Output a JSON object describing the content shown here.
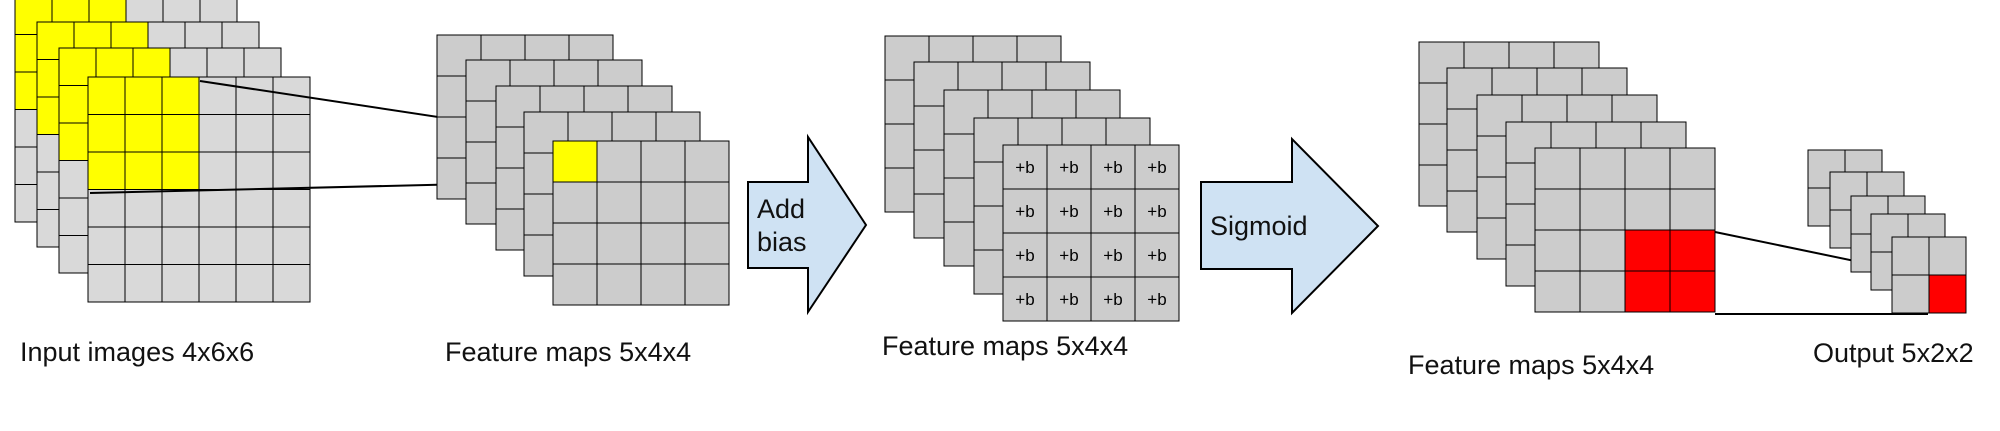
{
  "labels": {
    "input": "Input images 4x6x6",
    "conv_maps": "Feature maps 5x4x4",
    "bias_maps": "Feature maps 5x4x4",
    "sigmoid_maps": "Feature maps 5x4x4",
    "output": "Output 5x2x2"
  },
  "arrows": {
    "add_bias": [
      "Add",
      "bias"
    ],
    "sigmoid": "Sigmoid"
  },
  "bias_cell_text": "+b",
  "colors": {
    "grid_fill": "#d9d9d9",
    "map_fill": "#cccccc",
    "highlight_input": "#ffff00",
    "highlight_pool": "#ff0000",
    "arrow_fill": "#cfe2f3",
    "stroke": "#000000"
  }
}
